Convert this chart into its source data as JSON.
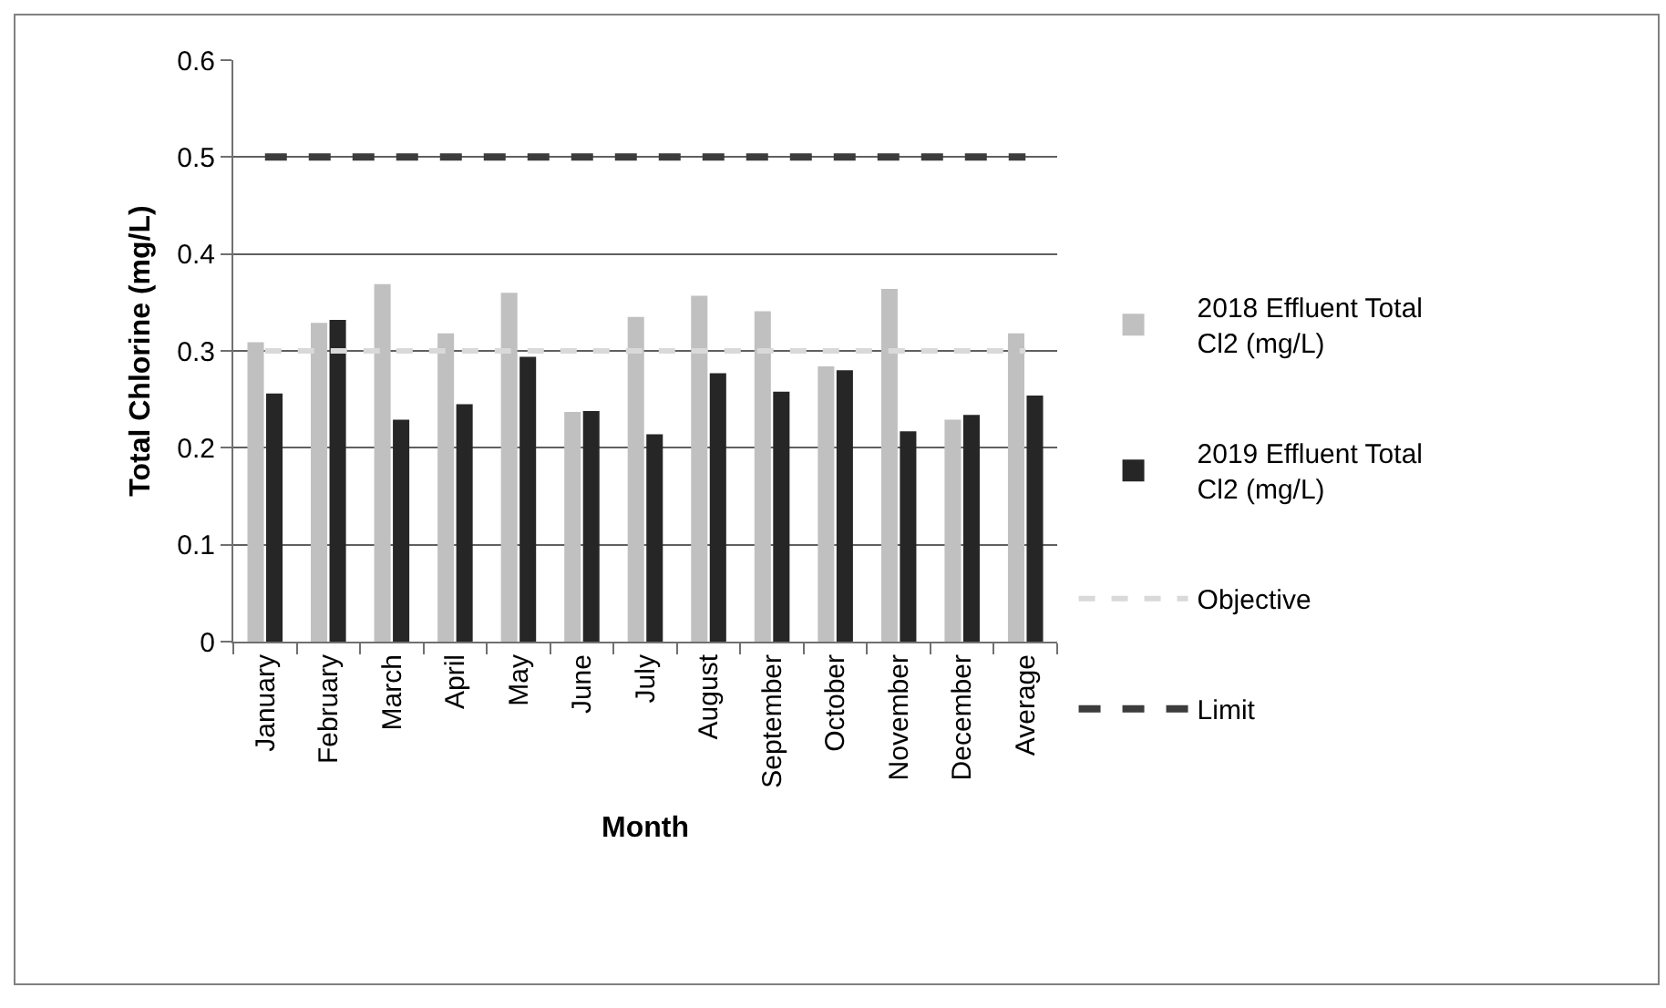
{
  "chart_data": {
    "type": "bar",
    "xlabel": "Month",
    "ylabel": "Total Chlorine (mg/L)",
    "categories": [
      "January",
      "February",
      "March",
      "April",
      "May",
      "June",
      "July",
      "August",
      "September",
      "October",
      "November",
      "December",
      "Average"
    ],
    "series": [
      {
        "name": "2018 Effluent Total Cl2 (mg/L)",
        "color": "#c0c0c0",
        "values": [
          0.309,
          0.329,
          0.369,
          0.318,
          0.36,
          0.237,
          0.335,
          0.357,
          0.341,
          0.284,
          0.364,
          0.229,
          0.318
        ]
      },
      {
        "name": "2019 Effluent Total Cl2 (mg/L)",
        "color": "#262626",
        "values": [
          0.256,
          0.332,
          0.229,
          0.245,
          0.294,
          0.238,
          0.214,
          0.277,
          0.258,
          0.28,
          0.217,
          0.234,
          0.254
        ]
      },
      {
        "name": "Objective",
        "type": "line",
        "color": "#d9d9d9",
        "line_style": "dashed",
        "values": [
          0.3,
          0.3,
          0.3,
          0.3,
          0.3,
          0.3,
          0.3,
          0.3,
          0.3,
          0.3,
          0.3,
          0.3,
          0.3
        ]
      },
      {
        "name": "Limit",
        "type": "line",
        "color": "#3c3c3c",
        "line_style": "dashed",
        "values": [
          0.5,
          0.5,
          0.5,
          0.5,
          0.5,
          0.5,
          0.5,
          0.5,
          0.5,
          0.5,
          0.5,
          0.5,
          0.5
        ]
      }
    ],
    "ylim": [
      0,
      0.6
    ],
    "yticks": [
      0,
      0.1,
      0.2,
      0.3,
      0.4,
      0.5,
      0.6
    ],
    "grid": "y",
    "legend": "right",
    "marker": "none"
  }
}
